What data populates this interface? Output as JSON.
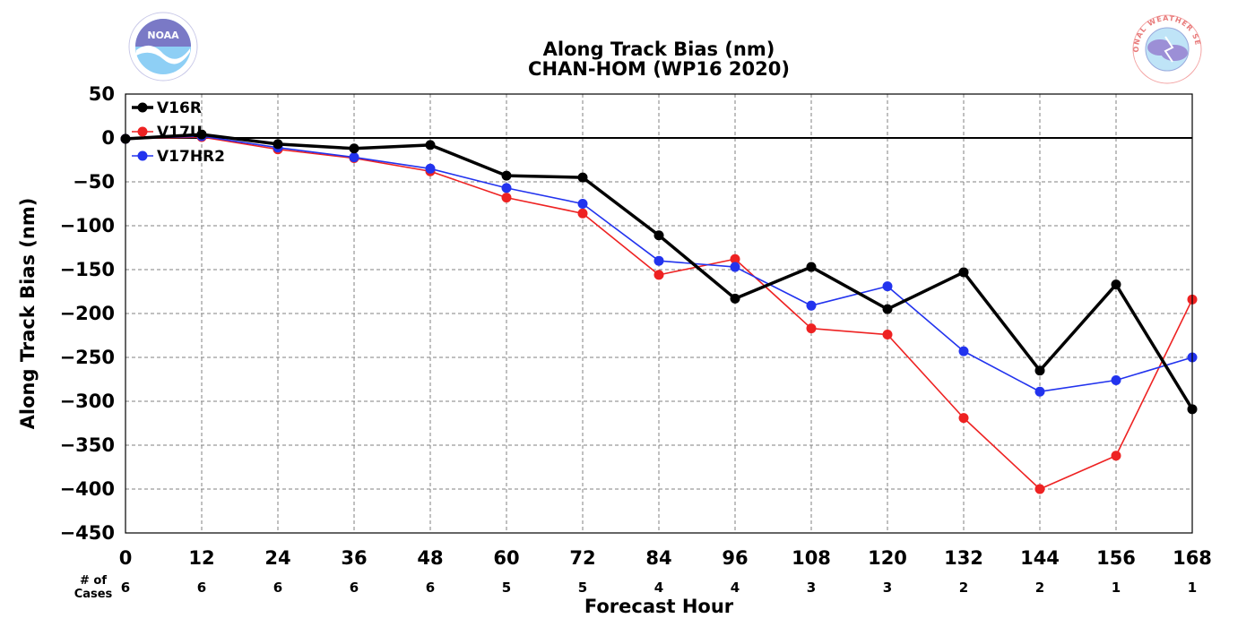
{
  "chart_data": {
    "type": "line",
    "title": "Along Track Bias (nm)",
    "subtitle": "CHAN-HOM (WP16 2020)",
    "xlabel": "Forecast Hour",
    "ylabel": "Along Track Bias (nm)",
    "x": [
      0,
      12,
      24,
      36,
      48,
      60,
      72,
      84,
      96,
      108,
      120,
      132,
      144,
      156,
      168
    ],
    "xlim": [
      0,
      168
    ],
    "ylim": [
      -450,
      50
    ],
    "yticks": [
      50,
      0,
      -50,
      -100,
      -150,
      -200,
      -250,
      -300,
      -350,
      -400,
      -450
    ],
    "ytick_labels": [
      "50",
      "0",
      "−50",
      "−100",
      "−150",
      "−200",
      "−250",
      "−300",
      "−350",
      "−400",
      "−450"
    ],
    "grid": true,
    "legend_position": "top-left",
    "cases_label": "# of\nCases",
    "cases": [
      6,
      6,
      6,
      6,
      6,
      5,
      5,
      4,
      4,
      3,
      3,
      2,
      2,
      1,
      1
    ],
    "series": [
      {
        "name": "V16R",
        "color": "#000000",
        "line_width": 3.5,
        "marker_size": 5.5,
        "values": [
          -1,
          4,
          -7,
          -12,
          -8,
          -43,
          -45,
          -111,
          -183,
          -147,
          -195,
          -153,
          -265,
          -167,
          -309
        ]
      },
      {
        "name": "V17U",
        "color": "#ee2222",
        "line_width": 1.6,
        "marker_size": 5.5,
        "values": [
          -1,
          1,
          -13,
          -23,
          -38,
          -68,
          -86,
          -156,
          -138,
          -217,
          -224,
          -319,
          -400,
          -362,
          -184
        ]
      },
      {
        "name": "V17HR2",
        "color": "#2233ee",
        "line_width": 1.6,
        "marker_size": 5.5,
        "values": [
          -1,
          2,
          -11,
          -22,
          -35,
          -57,
          -75,
          -140,
          -147,
          -191,
          -169,
          -243,
          -289,
          -276,
          -250
        ]
      }
    ]
  },
  "logos": {
    "left": {
      "name": "NOAA",
      "text": "NOAA"
    },
    "right": {
      "name": "National Weather Service",
      "text": "NATIONAL WEATHER SERVICE"
    }
  }
}
